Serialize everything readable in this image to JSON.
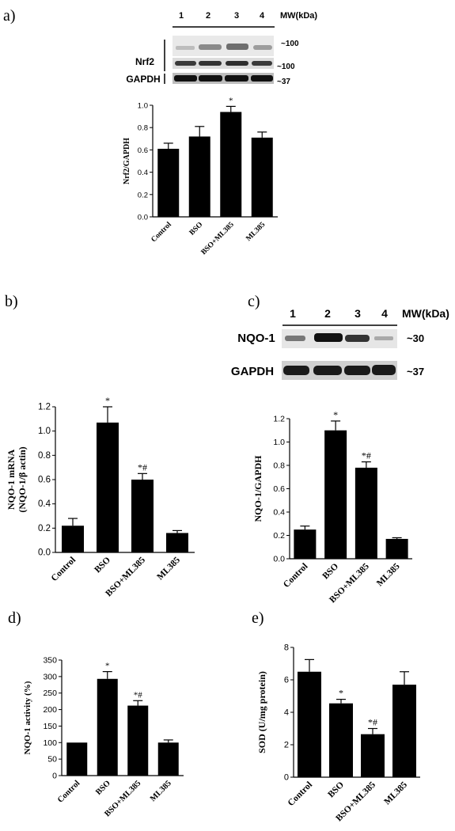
{
  "panels": {
    "a": {
      "tag": "a)"
    },
    "b": {
      "tag": "b)"
    },
    "c": {
      "tag": "c)"
    },
    "d": {
      "tag": "d)"
    },
    "e": {
      "tag": "e)"
    }
  },
  "blot_a": {
    "lanes": [
      "1",
      "2",
      "3",
      "4"
    ],
    "mw_header": "MW(kDa)",
    "protein": "Nrf2",
    "loading": "GAPDH",
    "markers": [
      "~100",
      "~100",
      "~37"
    ]
  },
  "blot_c": {
    "lanes": [
      "1",
      "2",
      "3",
      "4"
    ],
    "mw_header": "MW(kDa)",
    "protein": "NQO-1",
    "loading": "GAPDH",
    "markers": [
      "~30",
      "~37"
    ]
  },
  "chart_data": [
    {
      "id": "a",
      "type": "bar",
      "categories": [
        "Control",
        "BSO",
        "BSO+ML385",
        "ML385"
      ],
      "values": [
        0.61,
        0.72,
        0.94,
        0.71
      ],
      "errors": [
        0.05,
        0.09,
        0.05,
        0.05
      ],
      "annotations": [
        "",
        "",
        "*",
        ""
      ],
      "ylabel": "Nrf2/GAPDH",
      "ylim": [
        0,
        1.0
      ],
      "yticks": [
        "0.0",
        "0.2",
        "0.4",
        "0.6",
        "0.8",
        "1.0"
      ]
    },
    {
      "id": "b",
      "type": "bar",
      "categories": [
        "Control",
        "BSO",
        "BSO+ML385",
        "ML385"
      ],
      "values": [
        0.22,
        1.07,
        0.6,
        0.16
      ],
      "errors": [
        0.06,
        0.13,
        0.05,
        0.02
      ],
      "annotations": [
        "",
        "*",
        "*#",
        ""
      ],
      "ylabel": "NQO-1 mRNA",
      "ylabel2": "(NQO-1/β actin)",
      "ylim": [
        0,
        1.2
      ],
      "yticks": [
        "0.0",
        "0.2",
        "0.4",
        "0.6",
        "0.8",
        "1.0",
        "1.2"
      ]
    },
    {
      "id": "c",
      "type": "bar",
      "categories": [
        "Control",
        "BSO",
        "BSO+ML385",
        "ML385"
      ],
      "values": [
        0.25,
        1.1,
        0.78,
        0.17
      ],
      "errors": [
        0.03,
        0.08,
        0.05,
        0.01
      ],
      "annotations": [
        "",
        "*",
        "*#",
        ""
      ],
      "ylabel": "NQO-1/GAPDH",
      "ylim": [
        0,
        1.2
      ],
      "yticks": [
        "0.0",
        "0.2",
        "0.4",
        "0.6",
        "0.8",
        "1.0",
        "1.2"
      ]
    },
    {
      "id": "d",
      "type": "bar",
      "categories": [
        "Control",
        "BSO",
        "BSO+ML385",
        "ML385"
      ],
      "values": [
        100,
        293,
        212,
        100
      ],
      "errors": [
        0,
        22,
        15,
        8
      ],
      "annotations": [
        "",
        "*",
        "*#",
        ""
      ],
      "ylabel": "NQO-1 activity (%)",
      "ylim": [
        0,
        350
      ],
      "yticks": [
        "0",
        "50",
        "100",
        "150",
        "200",
        "250",
        "300",
        "350"
      ]
    },
    {
      "id": "e",
      "type": "bar",
      "categories": [
        "Control",
        "BSO",
        "BSO+ML385",
        "ML385"
      ],
      "values": [
        6.5,
        4.55,
        2.65,
        5.7
      ],
      "errors": [
        0.75,
        0.25,
        0.35,
        0.8
      ],
      "annotations": [
        "",
        "*",
        "*#",
        ""
      ],
      "ylabel": "SOD (U/mg protein)",
      "ylim": [
        0,
        8
      ],
      "yticks": [
        "0",
        "2",
        "4",
        "6",
        "8"
      ]
    }
  ]
}
